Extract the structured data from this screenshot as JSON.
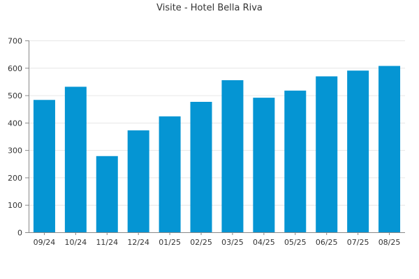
{
  "chart_data": {
    "type": "bar",
    "title": "Visite - Hotel Bella Riva",
    "xlabel": "",
    "ylabel": "",
    "categories": [
      "09/24",
      "10/24",
      "11/24",
      "12/24",
      "01/25",
      "02/25",
      "03/25",
      "04/25",
      "05/25",
      "06/25",
      "07/25",
      "08/25"
    ],
    "values": [
      483,
      531,
      278,
      372,
      423,
      476,
      555,
      491,
      517,
      569,
      590,
      607
    ],
    "ylim": [
      0,
      700
    ],
    "yticks": [
      0,
      100,
      200,
      300,
      400,
      500,
      600,
      700
    ],
    "grid": true,
    "legend": "none",
    "bar_color": "#0595d3",
    "grid_color": "#e6e6e6",
    "axis_color": "#888888"
  }
}
